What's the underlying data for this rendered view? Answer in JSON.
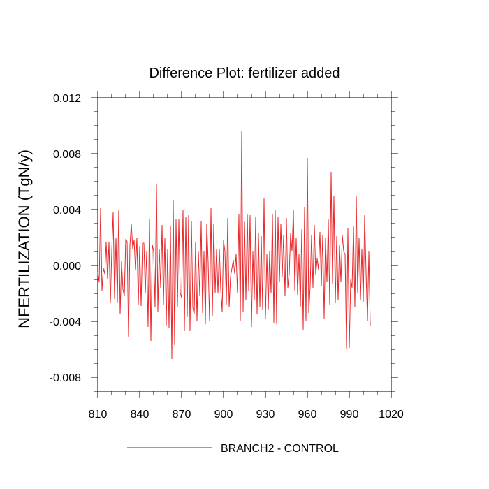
{
  "chart_data": {
    "type": "line",
    "title": "Difference Plot: fertilizer added",
    "xlabel": "",
    "ylabel": "NFERTILIZATION  (TgN/y)",
    "xlim": [
      810,
      1020
    ],
    "ylim": [
      -0.009,
      0.012
    ],
    "x_ticks": [
      810,
      840,
      870,
      900,
      930,
      960,
      990,
      1020
    ],
    "x_tick_labels": [
      "810",
      "840",
      "870",
      "900",
      "930",
      "960",
      "990",
      "1020"
    ],
    "y_ticks": [
      -0.008,
      -0.004,
      0.0,
      0.004,
      0.008,
      0.012
    ],
    "y_tick_labels": [
      "-0.008",
      "-0.004",
      "0.000",
      "0.004",
      "0.008",
      "0.012"
    ],
    "grid": false,
    "legend_position": "bottom",
    "series": [
      {
        "name": "BRANCH2 - CONTROL",
        "color": "#e8272a",
        "x_start": 810,
        "x_step": 1,
        "values": [
          -0.0005,
          -0.0012,
          0.0041,
          -0.0018,
          -0.0002,
          -0.0006,
          0.0017,
          -0.001,
          0.0017,
          -0.0027,
          0.001,
          0.0038,
          -0.0024,
          0.002,
          -0.0027,
          0.004,
          -0.0035,
          0.0003,
          -0.0017,
          -0.0022,
          0.0019,
          0.0017,
          -0.0051,
          0.0014,
          0.003,
          0.0012,
          0.0018,
          -0.0003,
          0.002,
          -0.0028,
          0.0014,
          -0.0029,
          0.0016,
          0.0016,
          -0.002,
          0.001,
          -0.0044,
          0.0033,
          -0.0054,
          0.0015,
          0.001,
          -0.003,
          0.0058,
          -0.0033,
          0.0012,
          -0.0016,
          0.0029,
          -0.0028,
          0.002,
          -0.0043,
          0.0012,
          -0.0045,
          0.0028,
          -0.0067,
          0.0047,
          -0.0057,
          0.0033,
          -0.003,
          0.0033,
          -0.002,
          -0.0023,
          0.004,
          -0.0047,
          0.0035,
          -0.0037,
          0.0036,
          -0.0047,
          0.0032,
          -0.003,
          -0.0035,
          0.0017,
          -0.004,
          0.001,
          -0.0022,
          0.0032,
          -0.0034,
          0.001,
          -0.0042,
          0.003,
          0.0002,
          -0.004,
          0.0041,
          -0.0036,
          0.003,
          -0.002,
          0.0012,
          -0.002,
          0.0012,
          -0.0017,
          -0.0033,
          0.0018,
          0.001,
          -0.0028,
          0.0034,
          -0.003,
          -0.0008,
          -0.0002,
          0.0004,
          -0.0006,
          0.0008,
          -0.002,
          0.0037,
          -0.004,
          0.0096,
          -0.0033,
          0.0032,
          -0.0025,
          0.0037,
          -0.0018,
          0.0036,
          -0.0044,
          0.001,
          -0.0025,
          0.0035,
          -0.0035,
          0.0023,
          -0.003,
          0.0021,
          -0.0032,
          0.0048,
          -0.0038,
          0.0008,
          -0.0032,
          0.001,
          -0.002,
          0.0037,
          -0.0041,
          0.004,
          -0.0042,
          0.0035,
          -0.0012,
          0.003,
          -0.0008,
          0.0022,
          -0.0022,
          0.0034,
          -0.0016,
          -0.0006,
          0.0023,
          0.001,
          0.004,
          -0.0018,
          0.002,
          -0.0021,
          0.0008,
          -0.003,
          0.0026,
          -0.0046,
          0.0042,
          -0.004,
          0.0077,
          -0.0034,
          -0.0015,
          0.0022,
          -0.0016,
          0.0029,
          -0.0007,
          0.0005,
          -0.0003,
          0.0024,
          -0.0015,
          0.0022,
          -0.0038,
          0.002,
          -0.0012,
          0.0033,
          -0.0028,
          0.0067,
          -0.0013,
          0.005,
          -0.0027,
          0.0021,
          -0.0025,
          0.0015,
          -0.0012,
          0.0022,
          0.001,
          0.0008,
          -0.006,
          0.0027,
          -0.0059,
          -0.001,
          -0.0016,
          0.0028,
          -0.003,
          0.005,
          -0.002,
          0.002,
          -0.0025,
          0.0012,
          -0.0026,
          0.0036,
          -0.0005,
          -0.004,
          0.001,
          -0.0043
        ]
      }
    ]
  }
}
